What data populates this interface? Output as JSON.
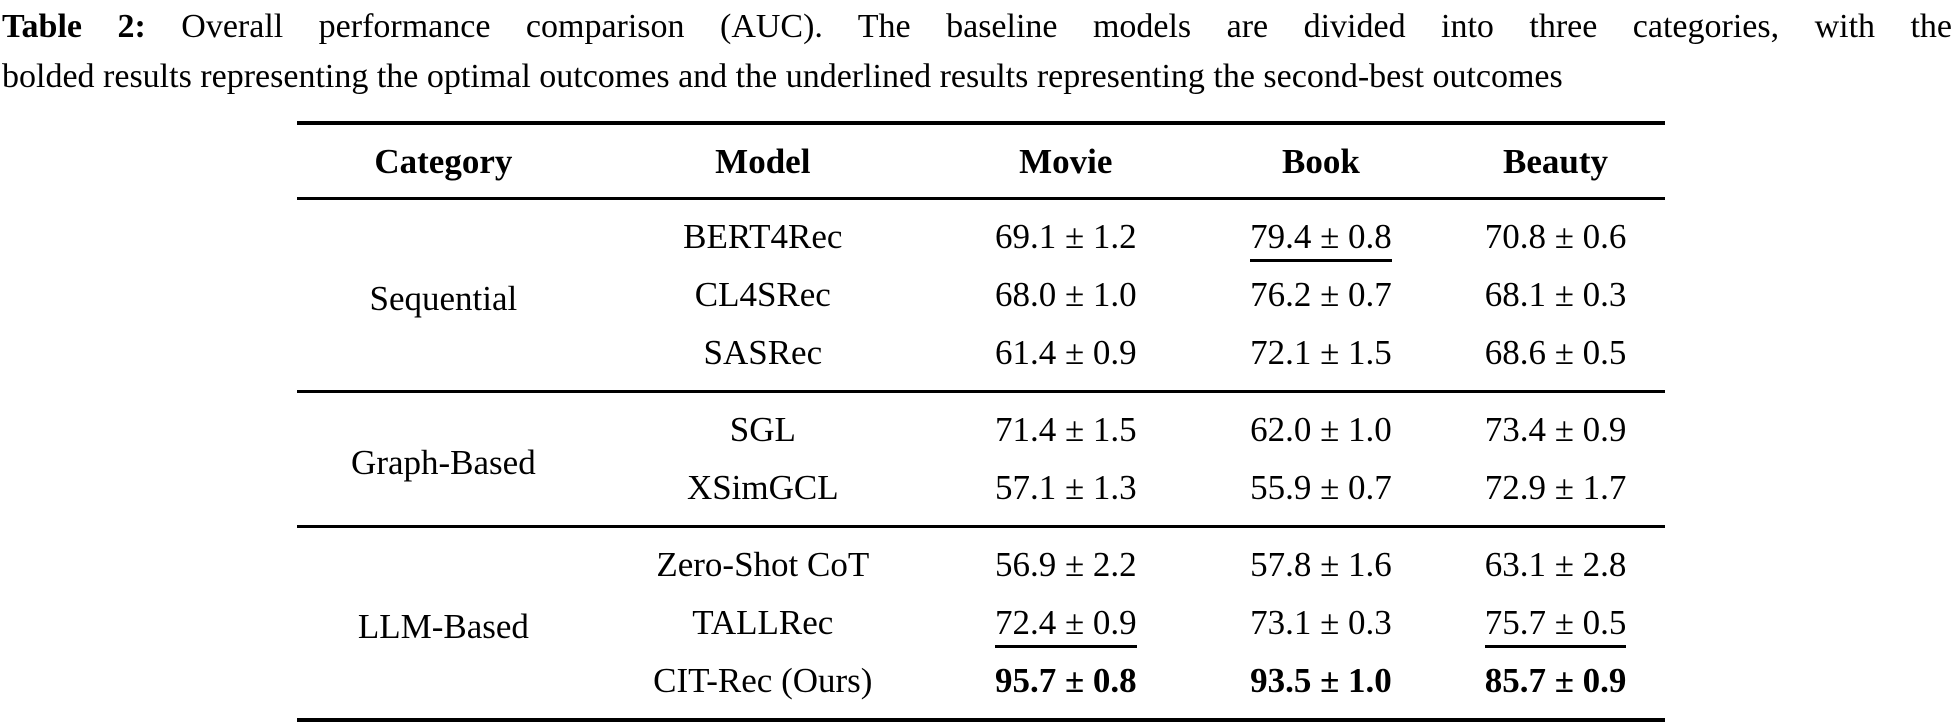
{
  "colors": {
    "background": "#ffffff",
    "text": "#000000",
    "rule": "#000000"
  },
  "caption": {
    "label": "Table 2:",
    "line1_rest": "Overall performance comparison (AUC). The baseline models are divided into three categories, with the",
    "line2": "bolded results representing the optimal outcomes and the underlined results representing the second-best outcomes"
  },
  "table": {
    "headers": {
      "category": "Category",
      "model": "Model",
      "movie": "Movie",
      "book": "Book",
      "beauty": "Beauty"
    },
    "groups": [
      {
        "category": "Sequential",
        "rows": [
          {
            "model": "BERT4Rec",
            "movie": "69.1 ± 1.2",
            "book": "79.4 ± 0.8",
            "beauty": "70.8 ± 0.6",
            "book_style": "underline"
          },
          {
            "model": "CL4SRec",
            "movie": "68.0 ± 1.0",
            "book": "76.2 ± 0.7",
            "beauty": "68.1 ± 0.3"
          },
          {
            "model": "SASRec",
            "movie": "61.4 ± 0.9",
            "book": "72.1 ± 1.5",
            "beauty": "68.6 ± 0.5"
          }
        ]
      },
      {
        "category": "Graph-Based",
        "rows": [
          {
            "model": "SGL",
            "movie": "71.4 ± 1.5",
            "book": "62.0 ± 1.0",
            "beauty": "73.4 ± 0.9"
          },
          {
            "model": "XSimGCL",
            "movie": "57.1 ± 1.3",
            "book": "55.9 ± 0.7",
            "beauty": "72.9 ± 1.7"
          }
        ]
      },
      {
        "category": "LLM-Based",
        "rows": [
          {
            "model": "Zero-Shot CoT",
            "movie": "56.9 ± 2.2",
            "book": "57.8 ± 1.6",
            "beauty": "63.1 ± 2.8"
          },
          {
            "model": "TALLRec",
            "movie": "72.4 ± 0.9",
            "book": "73.1 ± 0.3",
            "beauty": "75.7 ± 0.5",
            "movie_style": "underline",
            "beauty_style": "underline"
          },
          {
            "model": "CIT-Rec (Ours)",
            "movie": "95.7 ± 0.8",
            "book": "93.5 ± 1.0",
            "beauty": "85.7 ± 0.9",
            "movie_style": "bold",
            "book_style": "bold",
            "beauty_style": "bold"
          }
        ]
      }
    ]
  }
}
